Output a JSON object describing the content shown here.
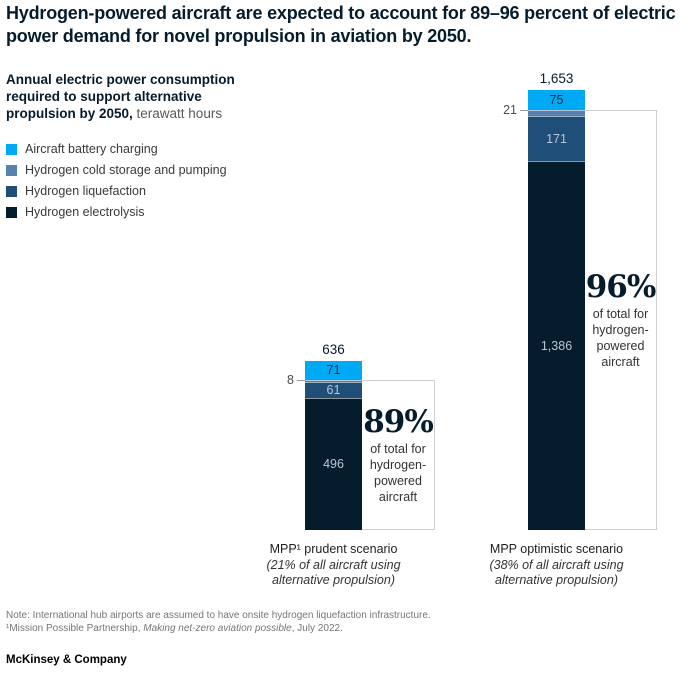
{
  "header": {
    "title": "Hydrogen-powered aircraft are expected to account for 89–96 percent of electric power demand for novel propulsion in aviation by 2050.",
    "subtitle_bold": "Annual electric power consumption required to support alternative propulsion by 2050,",
    "subtitle_unit": " terawatt hours"
  },
  "chart_data": {
    "type": "stacked-bar",
    "unit": "terawatt hours",
    "categories": [
      {
        "label": "MPP¹ prudent scenario",
        "sub": "(21% of all aircraft using alternative propulsion)"
      },
      {
        "label": "MPP optimistic scenario",
        "sub": "(38% of all aircraft using alternative propulsion)"
      }
    ],
    "series": [
      {
        "name": "Aircraft battery charging",
        "color": "#00A9F4",
        "values": [
          71,
          75
        ],
        "labels": [
          "71",
          "75"
        ],
        "label_style": "dark"
      },
      {
        "name": "Hydrogen cold storage and pumping",
        "color": "#5881AF",
        "values": [
          8,
          21
        ],
        "labels": [
          null,
          null
        ],
        "label_style": "side"
      },
      {
        "name": "Hydrogen liquefaction",
        "color": "#1F4E78",
        "values": [
          61,
          171
        ],
        "labels": [
          "61",
          "171"
        ],
        "label_style": "light"
      },
      {
        "name": "Hydrogen electrolysis",
        "color": "#051C2C",
        "values": [
          496,
          1386
        ],
        "labels": [
          "496",
          "1,386"
        ],
        "label_style": "light"
      }
    ],
    "totals": [
      "636",
      "1,653"
    ],
    "side_labels": [
      "8",
      "21"
    ],
    "callouts": [
      {
        "percent": "89%",
        "desc": "of total for hydrogen-powered aircraft"
      },
      {
        "percent": "96%",
        "desc": "of total for hydrogen-powered aircraft"
      }
    ],
    "ylim": [
      0,
      1653
    ],
    "legend_position": "top-left",
    "grid": false
  },
  "footer": {
    "note": "Note: International hub airports are assumed to have onsite hydrogen liquefaction infrastructure.",
    "source_prefix": "¹Mission Possible Partnership, ",
    "source_italic": "Making net-zero aviation possible",
    "source_suffix": ", July 2022.",
    "logo": "McKinsey & Company"
  },
  "colors": {
    "deep_navy": "#051C2C",
    "bright_cyan": "#00A9F4",
    "steel_blue": "#5881AF",
    "dark_blue": "#1F4E78",
    "box_border": "#cfcfcf"
  }
}
